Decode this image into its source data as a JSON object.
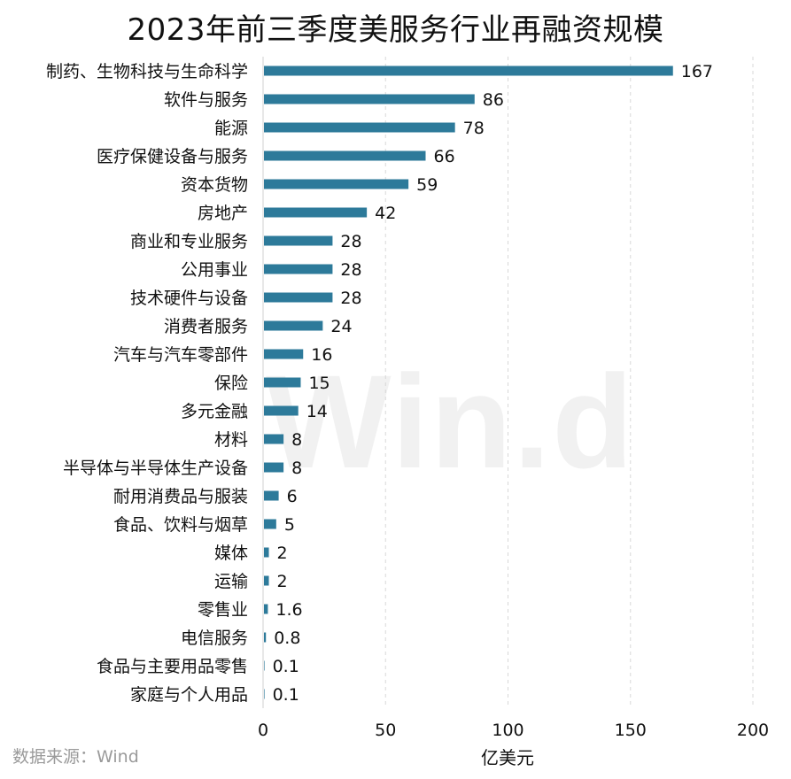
{
  "title": "2023年前三季度美服务行业再融资规模",
  "source": "数据来源：Wind",
  "watermark": "Win.d",
  "chart_data": {
    "type": "bar",
    "orientation": "horizontal",
    "title": "2023年前三季度美服务行业再融资规模",
    "xlabel": "亿美元",
    "ylabel": "",
    "xlim": [
      0,
      200
    ],
    "xticks": [
      0,
      50,
      100,
      150,
      200
    ],
    "grid": "vertical-dashed",
    "bar_color": "#2d7a9a",
    "categories": [
      "制药、生物科技与生命科学",
      "软件与服务",
      "能源",
      "医疗保健设备与服务",
      "资本货物",
      "房地产",
      "商业和专业服务",
      "公用事业",
      "技术硬件与设备",
      "消费者服务",
      "汽车与汽车零部件",
      "保险",
      "多元金融",
      "材料",
      "半导体与半导体生产设备",
      "耐用消费品与服装",
      "食品、饮料与烟草",
      "媒体",
      "运输",
      "零售业",
      "电信服务",
      "食品与主要用品零售",
      "家庭与个人用品"
    ],
    "values": [
      167,
      86,
      78,
      66,
      59,
      42,
      28,
      28,
      28,
      24,
      16,
      15,
      14,
      8,
      8,
      6,
      5,
      2,
      2,
      1.6,
      0.8,
      0.1,
      0.1
    ],
    "value_labels": [
      "167",
      "86",
      "78",
      "66",
      "59",
      "42",
      "28",
      "28",
      "28",
      "24",
      "16",
      "15",
      "14",
      "8",
      "8",
      "6",
      "5",
      "2",
      "2",
      "1.6",
      "0.8",
      "0.1",
      "0.1"
    ]
  }
}
